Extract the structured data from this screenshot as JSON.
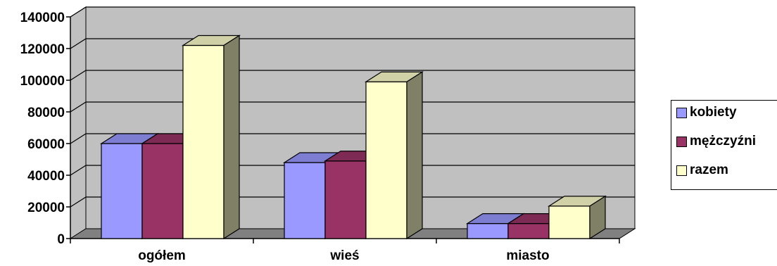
{
  "chart_data": {
    "type": "bar",
    "categories": [
      "ogółem",
      "wieś",
      "miasto"
    ],
    "series": [
      {
        "name": "kobiety",
        "values": [
          60000,
          48000,
          9500
        ],
        "color": "#9999ff"
      },
      {
        "name": "mężczyźni",
        "values": [
          60000,
          49000,
          9500
        ],
        "color": "#993366"
      },
      {
        "name": "razem",
        "values": [
          122000,
          99000,
          20500
        ],
        "color": "#ffffcc"
      }
    ],
    "yticks": [
      "0",
      "20000",
      "40000",
      "60000",
      "80000",
      "100000",
      "120000",
      "140000"
    ],
    "ylim": [
      0,
      140000
    ],
    "grid": true,
    "legend_position": "right",
    "wall_color": "#c0c0c0",
    "floor_color": "#808080"
  }
}
